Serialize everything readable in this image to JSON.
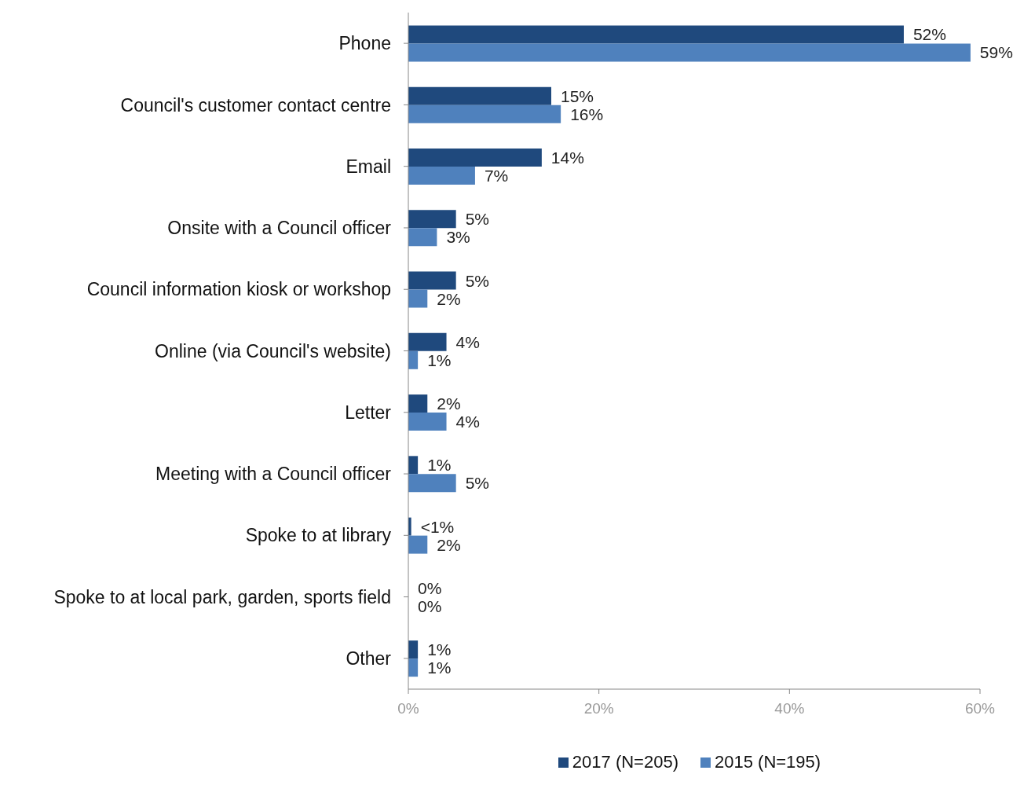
{
  "chart_data": {
    "type": "bar",
    "orientation": "horizontal",
    "categories": [
      "Phone",
      "Council's customer contact centre",
      "Email",
      "Onsite with a Council officer",
      "Council information kiosk or workshop",
      "Online (via Council's website)",
      "Letter",
      "Meeting with a Council officer",
      "Spoke to at library",
      "Spoke to at local park, garden, sports field",
      "Other"
    ],
    "series": [
      {
        "name": "2017 (N=205)",
        "color": "#1f497d",
        "values": [
          52,
          15,
          14,
          5,
          5,
          4,
          2,
          1,
          0.3,
          0,
          1
        ],
        "value_labels": [
          "52%",
          "15%",
          "14%",
          "5%",
          "5%",
          "4%",
          "2%",
          "1%",
          "<1%",
          "0%",
          "1%"
        ]
      },
      {
        "name": "2015 (N=195)",
        "color": "#4f81bd",
        "values": [
          59,
          16,
          7,
          3,
          2,
          1,
          4,
          5,
          2,
          0,
          1
        ],
        "value_labels": [
          "59%",
          "16%",
          "7%",
          "3%",
          "2%",
          "1%",
          "4%",
          "5%",
          "2%",
          "0%",
          "1%"
        ]
      }
    ],
    "xlim": [
      0,
      60
    ],
    "xticks": [
      {
        "value": 0,
        "label": "0%"
      },
      {
        "value": 20,
        "label": "20%"
      },
      {
        "value": 40,
        "label": "40%"
      },
      {
        "value": 60,
        "label": "60%"
      }
    ],
    "grid": false,
    "legend": "bottom"
  }
}
